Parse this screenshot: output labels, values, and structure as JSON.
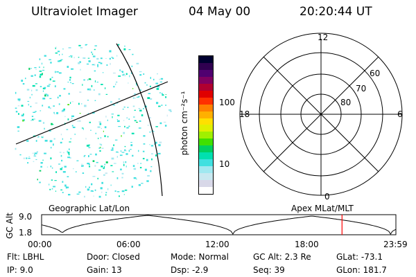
{
  "header": {
    "title": "Ultraviolet Imager",
    "date": "04 May 00",
    "time": "20:20:44 UT"
  },
  "colorbar": {
    "label": "photon cm⁻²s⁻¹",
    "ticks": [
      "100",
      "10"
    ],
    "colors": [
      "#ffffff",
      "#d8d8e8",
      "#c8e8f0",
      "#a0e8f0",
      "#40e0e0",
      "#00e0b0",
      "#00d060",
      "#40e000",
      "#a0f000",
      "#e0f000",
      "#ffe000",
      "#ffb000",
      "#ff8000",
      "#ff3000",
      "#e00000",
      "#b00030",
      "#800060",
      "#500070",
      "#300050",
      "#000030"
    ]
  },
  "polar": {
    "mlt_labels": {
      "top": "12",
      "bottom": "0",
      "left": "18",
      "right": "6"
    },
    "lat_labels": [
      "60",
      "70",
      "80"
    ]
  },
  "orbit": {
    "left_label": "Geographic Lat/Lon",
    "right_label": "Apex MLat/MLT",
    "y_axis_label": "GC Alt",
    "y_ticks": [
      "9.0",
      "1.8"
    ],
    "x_ticks": [
      "00:00",
      "06:00",
      "12:00",
      "18:00",
      "23:59"
    ],
    "marker_color": "#ff0000",
    "marker_hour": 20.35
  },
  "info": {
    "col1": [
      "Flt:  LBHL",
      "IP:  9.0"
    ],
    "col2": [
      "Door:  Closed",
      "Gain:  13"
    ],
    "col3": [
      "Mode:  Normal",
      "Dsp:     -2.9"
    ],
    "col4": [
      "GC Alt:  2.3 Re",
      "Seq:  39"
    ],
    "col5": [
      "GLat:  -73.1",
      "GLon:  181.7"
    ]
  }
}
